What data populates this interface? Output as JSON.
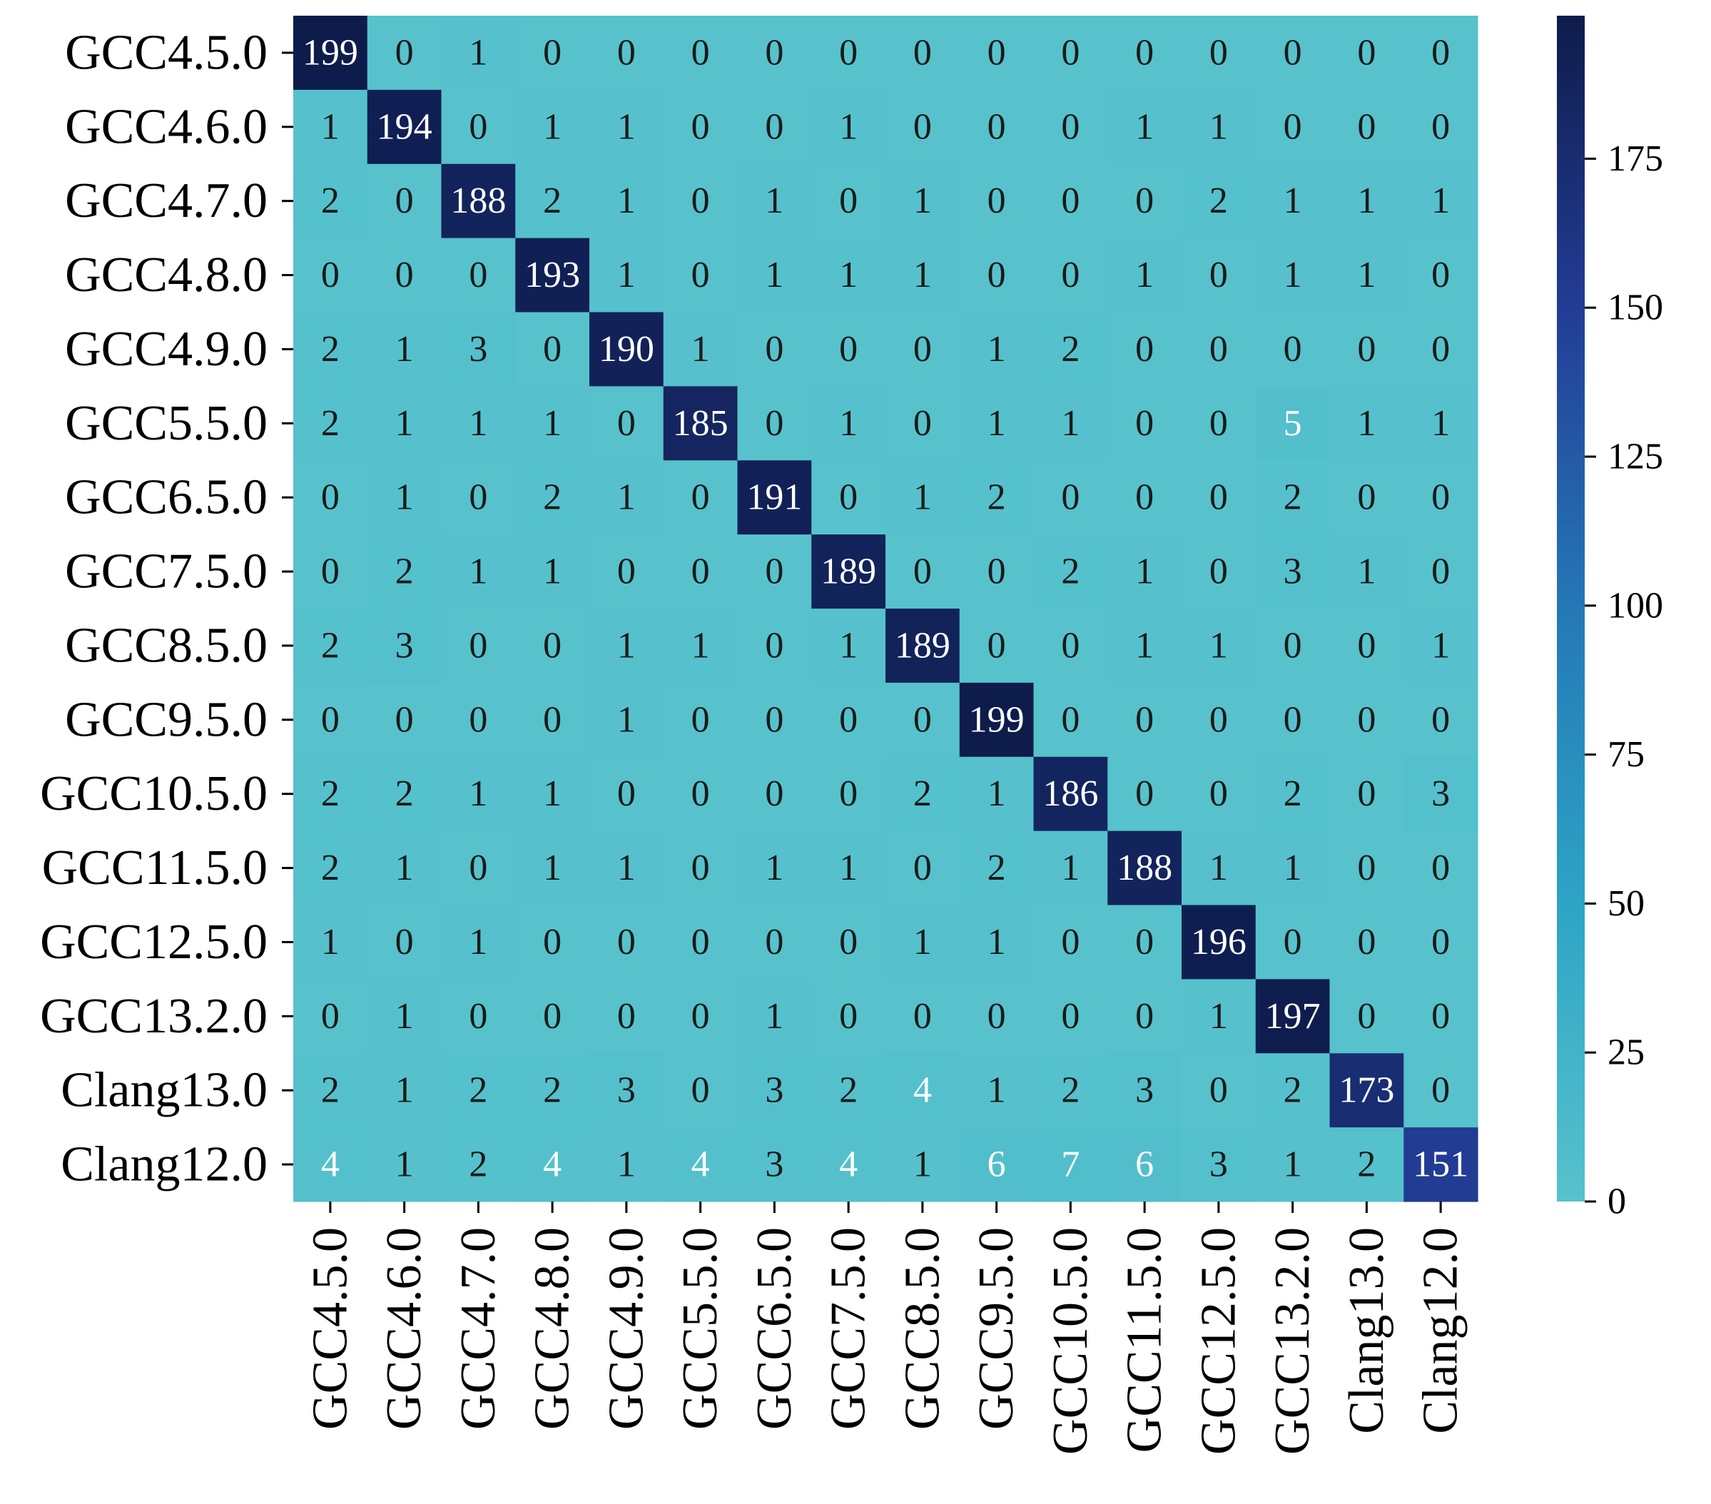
{
  "chart_data": {
    "type": "heatmap",
    "title": "",
    "xlabel": "",
    "ylabel": "",
    "categories": [
      "GCC4.5.0",
      "GCC4.6.0",
      "GCC4.7.0",
      "GCC4.8.0",
      "GCC4.9.0",
      "GCC5.5.0",
      "GCC6.5.0",
      "GCC7.5.0",
      "GCC8.5.0",
      "GCC9.5.0",
      "GCC10.5.0",
      "GCC11.5.0",
      "GCC12.5.0",
      "GCC13.2.0",
      "Clang13.0",
      "Clang12.0"
    ],
    "matrix": [
      [
        199,
        0,
        1,
        0,
        0,
        0,
        0,
        0,
        0,
        0,
        0,
        0,
        0,
        0,
        0,
        0
      ],
      [
        1,
        194,
        0,
        1,
        1,
        0,
        0,
        1,
        0,
        0,
        0,
        1,
        1,
        0,
        0,
        0
      ],
      [
        2,
        0,
        188,
        2,
        1,
        0,
        1,
        0,
        1,
        0,
        0,
        0,
        2,
        1,
        1,
        1
      ],
      [
        0,
        0,
        0,
        193,
        1,
        0,
        1,
        1,
        1,
        0,
        0,
        1,
        0,
        1,
        1,
        0
      ],
      [
        2,
        1,
        3,
        0,
        190,
        1,
        0,
        0,
        0,
        1,
        2,
        0,
        0,
        0,
        0,
        0
      ],
      [
        2,
        1,
        1,
        1,
        0,
        185,
        0,
        1,
        0,
        1,
        1,
        0,
        0,
        5,
        1,
        1
      ],
      [
        0,
        1,
        0,
        2,
        1,
        0,
        191,
        0,
        1,
        2,
        0,
        0,
        0,
        2,
        0,
        0
      ],
      [
        0,
        2,
        1,
        1,
        0,
        0,
        0,
        189,
        0,
        0,
        2,
        1,
        0,
        3,
        1,
        0
      ],
      [
        2,
        3,
        0,
        0,
        1,
        1,
        0,
        1,
        189,
        0,
        0,
        1,
        1,
        0,
        0,
        1
      ],
      [
        0,
        0,
        0,
        0,
        1,
        0,
        0,
        0,
        0,
        199,
        0,
        0,
        0,
        0,
        0,
        0
      ],
      [
        2,
        2,
        1,
        1,
        0,
        0,
        0,
        0,
        2,
        1,
        186,
        0,
        0,
        2,
        0,
        3
      ],
      [
        2,
        1,
        0,
        1,
        1,
        0,
        1,
        1,
        0,
        2,
        1,
        188,
        1,
        1,
        0,
        0
      ],
      [
        1,
        0,
        1,
        0,
        0,
        0,
        0,
        0,
        1,
        1,
        0,
        0,
        196,
        0,
        0,
        0
      ],
      [
        0,
        1,
        0,
        0,
        0,
        0,
        1,
        0,
        0,
        0,
        0,
        0,
        1,
        197,
        0,
        0
      ],
      [
        2,
        1,
        2,
        2,
        3,
        0,
        3,
        2,
        4,
        1,
        2,
        3,
        0,
        2,
        173,
        0
      ],
      [
        4,
        1,
        2,
        4,
        1,
        4,
        3,
        4,
        1,
        6,
        7,
        6,
        3,
        1,
        2,
        151
      ]
    ],
    "colorbar": {
      "min": 0,
      "max": 199,
      "ticks": [
        0,
        25,
        50,
        75,
        100,
        125,
        150,
        175
      ]
    },
    "colorscale": [
      "#57c2cc",
      "#2da4c6",
      "#2478b6",
      "#233d97",
      "#0e1c4b"
    ],
    "legend": "none",
    "grid": false
  }
}
